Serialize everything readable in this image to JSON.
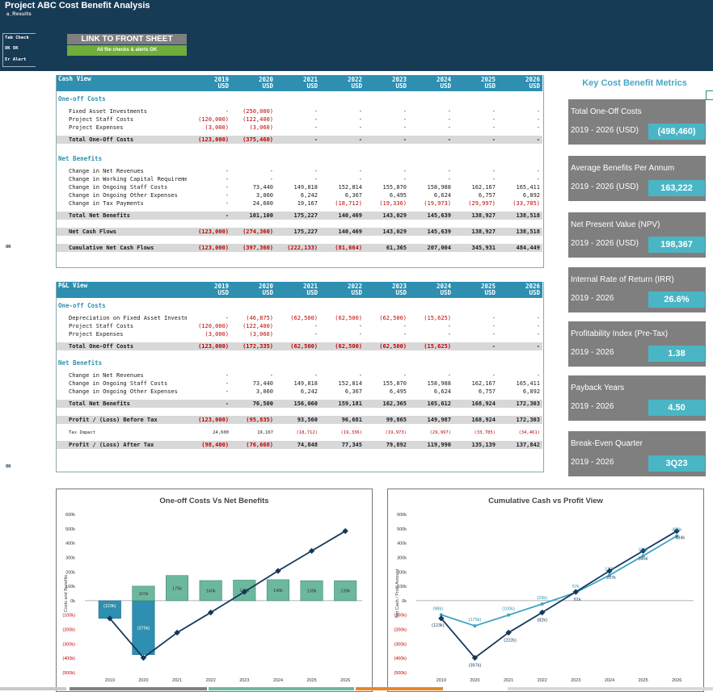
{
  "header": {
    "title": "Project ABC Cost Benefit Analysis",
    "subtitle": "a_Results",
    "check_lines": [
      "Tab Check",
      "OK  OK",
      "Er Alert"
    ],
    "link_button": "LINK TO FRONT SHEET",
    "status_button": "All file checks & alerts OK"
  },
  "side_flags": [
    "OK",
    "OK"
  ],
  "years": [
    "2019",
    "2020",
    "2021",
    "2022",
    "2023",
    "2024",
    "2025",
    "2026"
  ],
  "currency": "USD",
  "cash_view": {
    "title": "Cash View",
    "sections": [
      {
        "title": "One-off Costs",
        "items": [
          {
            "label": "Fixed Asset Investments",
            "values": [
              "-",
              "(250,000)",
              "-",
              "-",
              "-",
              "-",
              "-",
              "-"
            ]
          },
          {
            "label": "Project Staff Costs",
            "values": [
              "(120,000)",
              "(122,400)",
              "-",
              "-",
              "-",
              "-",
              "-",
              "-"
            ]
          },
          {
            "label": "Project Expenses",
            "values": [
              "(3,000)",
              "(3,060)",
              "-",
              "-",
              "-",
              "-",
              "-",
              "-"
            ]
          }
        ],
        "total": {
          "label": "Total One-Off Costs",
          "values": [
            "(123,000)",
            "(375,460)",
            "-",
            "-",
            "-",
            "-",
            "-",
            "-"
          ]
        }
      },
      {
        "title": "Net Benefits",
        "items": [
          {
            "label": "Change in Net Revenues",
            "values": [
              "-",
              "-",
              "-",
              "-",
              "-",
              "-",
              "-",
              "-"
            ]
          },
          {
            "label": "Change in Working Capital Requirements",
            "values": [
              "-",
              "-",
              "-",
              "-",
              "-",
              "-",
              "-",
              "-"
            ]
          },
          {
            "label": "Change in Ongoing Staff Costs",
            "values": [
              "-",
              "73,440",
              "149,818",
              "152,814",
              "155,870",
              "158,988",
              "162,167",
              "165,411"
            ]
          },
          {
            "label": "Change in Ongoing Other Expenses",
            "values": [
              "-",
              "3,060",
              "6,242",
              "6,367",
              "6,495",
              "6,624",
              "6,757",
              "6,892"
            ]
          },
          {
            "label": "Change in Tax Payments",
            "values": [
              "-",
              "24,600",
              "19,167",
              "(18,712)",
              "(19,336)",
              "(19,973)",
              "(29,997)",
              "(33,785)"
            ]
          }
        ],
        "total": {
          "label": "Total Net Benefits",
          "values": [
            "-",
            "101,100",
            "175,227",
            "140,469",
            "143,029",
            "145,639",
            "138,927",
            "138,518"
          ]
        }
      }
    ],
    "net_cash": {
      "label": "Net Cash Flows",
      "values": [
        "(123,000)",
        "(274,360)",
        "175,227",
        "140,469",
        "143,029",
        "145,639",
        "138,927",
        "138,518"
      ]
    },
    "cumulative": {
      "label": "Cumulative Net Cash Flows",
      "values": [
        "(123,000)",
        "(397,360)",
        "(222,133)",
        "(81,664)",
        "61,365",
        "207,004",
        "345,931",
        "484,449"
      ]
    }
  },
  "pl_view": {
    "title": "P&L View",
    "sections": [
      {
        "title": "One-off Costs",
        "items": [
          {
            "label": "Depreciation on Fixed Asset Investments",
            "values": [
              "-",
              "(46,875)",
              "(62,500)",
              "(62,500)",
              "(62,500)",
              "(15,625)",
              "-",
              "-"
            ]
          },
          {
            "label": "Project Staff Costs",
            "values": [
              "(120,000)",
              "(122,400)",
              "-",
              "-",
              "-",
              "-",
              "-",
              "-"
            ]
          },
          {
            "label": "Project Expenses",
            "values": [
              "(3,000)",
              "(3,060)",
              "-",
              "-",
              "-",
              "-",
              "-",
              "-"
            ]
          }
        ],
        "total": {
          "label": "Total One-Off Costs",
          "values": [
            "(123,000)",
            "(172,335)",
            "(62,500)",
            "(62,500)",
            "(62,500)",
            "(15,625)",
            "-",
            "-"
          ]
        }
      },
      {
        "title": "Net Benefits",
        "items": [
          {
            "label": "Change in Net Revenues",
            "values": [
              "-",
              "-",
              "-",
              "-",
              "-",
              "-",
              "-",
              "-"
            ]
          },
          {
            "label": "Change in Ongoing Staff Costs",
            "values": [
              "-",
              "73,440",
              "149,818",
              "152,814",
              "155,870",
              "158,988",
              "162,167",
              "165,411"
            ]
          },
          {
            "label": "Change in Ongoing Other Expenses",
            "values": [
              "-",
              "3,060",
              "6,242",
              "6,367",
              "6,495",
              "6,624",
              "6,757",
              "6,892"
            ]
          }
        ],
        "total": {
          "label": "Total Net Benefits",
          "values": [
            "-",
            "76,500",
            "156,060",
            "159,181",
            "162,365",
            "165,612",
            "168,924",
            "172,303"
          ]
        }
      }
    ],
    "before_tax": {
      "label": "Profit / (Loss) Before Tax",
      "values": [
        "(123,000)",
        "(95,835)",
        "93,560",
        "96,681",
        "99,865",
        "149,987",
        "168,924",
        "172,303"
      ]
    },
    "tax": {
      "label": "Tax Impact",
      "values": [
        "24,600",
        "19,167",
        "(18,712)",
        "(19,336)",
        "(19,973)",
        "(29,997)",
        "(33,785)",
        "(34,461)"
      ]
    },
    "after_tax": {
      "label": "Profit / (Loss) After Tax",
      "values": [
        "(98,400)",
        "(76,668)",
        "74,848",
        "77,345",
        "79,892",
        "119,990",
        "135,139",
        "137,842"
      ]
    }
  },
  "metrics": {
    "title": "Key Cost Benefit Metrics",
    "items": [
      {
        "name": "Total One-Off Costs",
        "period": "2019 - 2026 (USD)",
        "value": "(498,460)"
      },
      {
        "name": "Average Benefits Per Annum",
        "period": "2019 - 2026 (USD)",
        "value": "163,222"
      },
      {
        "name": "Net Present Value (NPV)",
        "period": "2019 - 2026 (USD)",
        "value": "198,367"
      },
      {
        "name": "Internal Rate of Return (IRR)",
        "period": "2019 - 2026",
        "value": "26.6%"
      },
      {
        "name": "Profitability Index (Pre-Tax)",
        "period": "2019 - 2026",
        "value": "1.38"
      },
      {
        "name": "Payback Years",
        "period": "2019 - 2026",
        "value": "4.50"
      },
      {
        "name": "Break-Even Quarter",
        "period": "2019 - 2026",
        "value": "3Q23"
      }
    ]
  },
  "colors": {
    "header": "#173a55",
    "accent": "#2e8fb0",
    "negative": "#c00000",
    "bar": "#6cb89f",
    "bar_neg": "#2e8fb0",
    "line_dark": "#15385a",
    "line_light": "#3fa3c3"
  },
  "chart_data": [
    {
      "type": "bar",
      "title": "One-off Costs Vs Net Benefits",
      "ylabel": "Costs and Benefits",
      "categories": [
        "2019",
        "2020",
        "2021",
        "2022",
        "2023",
        "2024",
        "2025",
        "2026"
      ],
      "series": [
        {
          "values": [
            -123,
            -375,
            0,
            0,
            0,
            0,
            0,
            0
          ],
          "labels": [
            "(123k)",
            "(375k)",
            "",
            "",
            "",
            "",
            "",
            ""
          ]
        },
        {
          "values": [
            0,
            101,
            175,
            140,
            143,
            146,
            139,
            139
          ],
          "labels": [
            "",
            "101k",
            "175k",
            "140k",
            "143k",
            "146k",
            "139k",
            "139k"
          ]
        },
        {
          "type": "line",
          "values": [
            -123,
            -397,
            -222,
            -82,
            61,
            207,
            346,
            484
          ]
        }
      ],
      "ylim": [
        -500,
        600
      ],
      "yticks": [
        "600k",
        "500k",
        "400k",
        "300k",
        "200k",
        "100k",
        "0k",
        "(100k)",
        "(200k)",
        "(300k)",
        "(400k)",
        "(500k)"
      ]
    },
    {
      "type": "line",
      "title": "Cumulative Cash vs Profit View",
      "ylabel": "Net Cash / Profit Amount",
      "categories": [
        "2019",
        "2020",
        "2021",
        "2022",
        "2023",
        "2024",
        "2025",
        "2026"
      ],
      "series": [
        {
          "values": [
            -123,
            -397,
            -222,
            -82,
            61,
            207,
            346,
            484
          ],
          "labels": [
            "(123k)",
            "(397k)",
            "(222k)",
            "(82k)",
            "61k",
            "207k",
            "346k",
            "484k"
          ]
        },
        {
          "values": [
            -98,
            -175,
            -100,
            -23,
            57,
            177,
            312,
            450
          ],
          "labels": [
            "(98k)",
            "(175k)",
            "(100k)",
            "(23k)",
            "57k",
            "177k",
            "312k",
            "450k"
          ]
        }
      ],
      "ylim": [
        -500,
        600
      ],
      "yticks": [
        "600k",
        "500k",
        "400k",
        "300k",
        "200k",
        "100k",
        "0k",
        "(100k)",
        "(200k)",
        "(300k)",
        "(400k)",
        "(500k)"
      ]
    }
  ]
}
